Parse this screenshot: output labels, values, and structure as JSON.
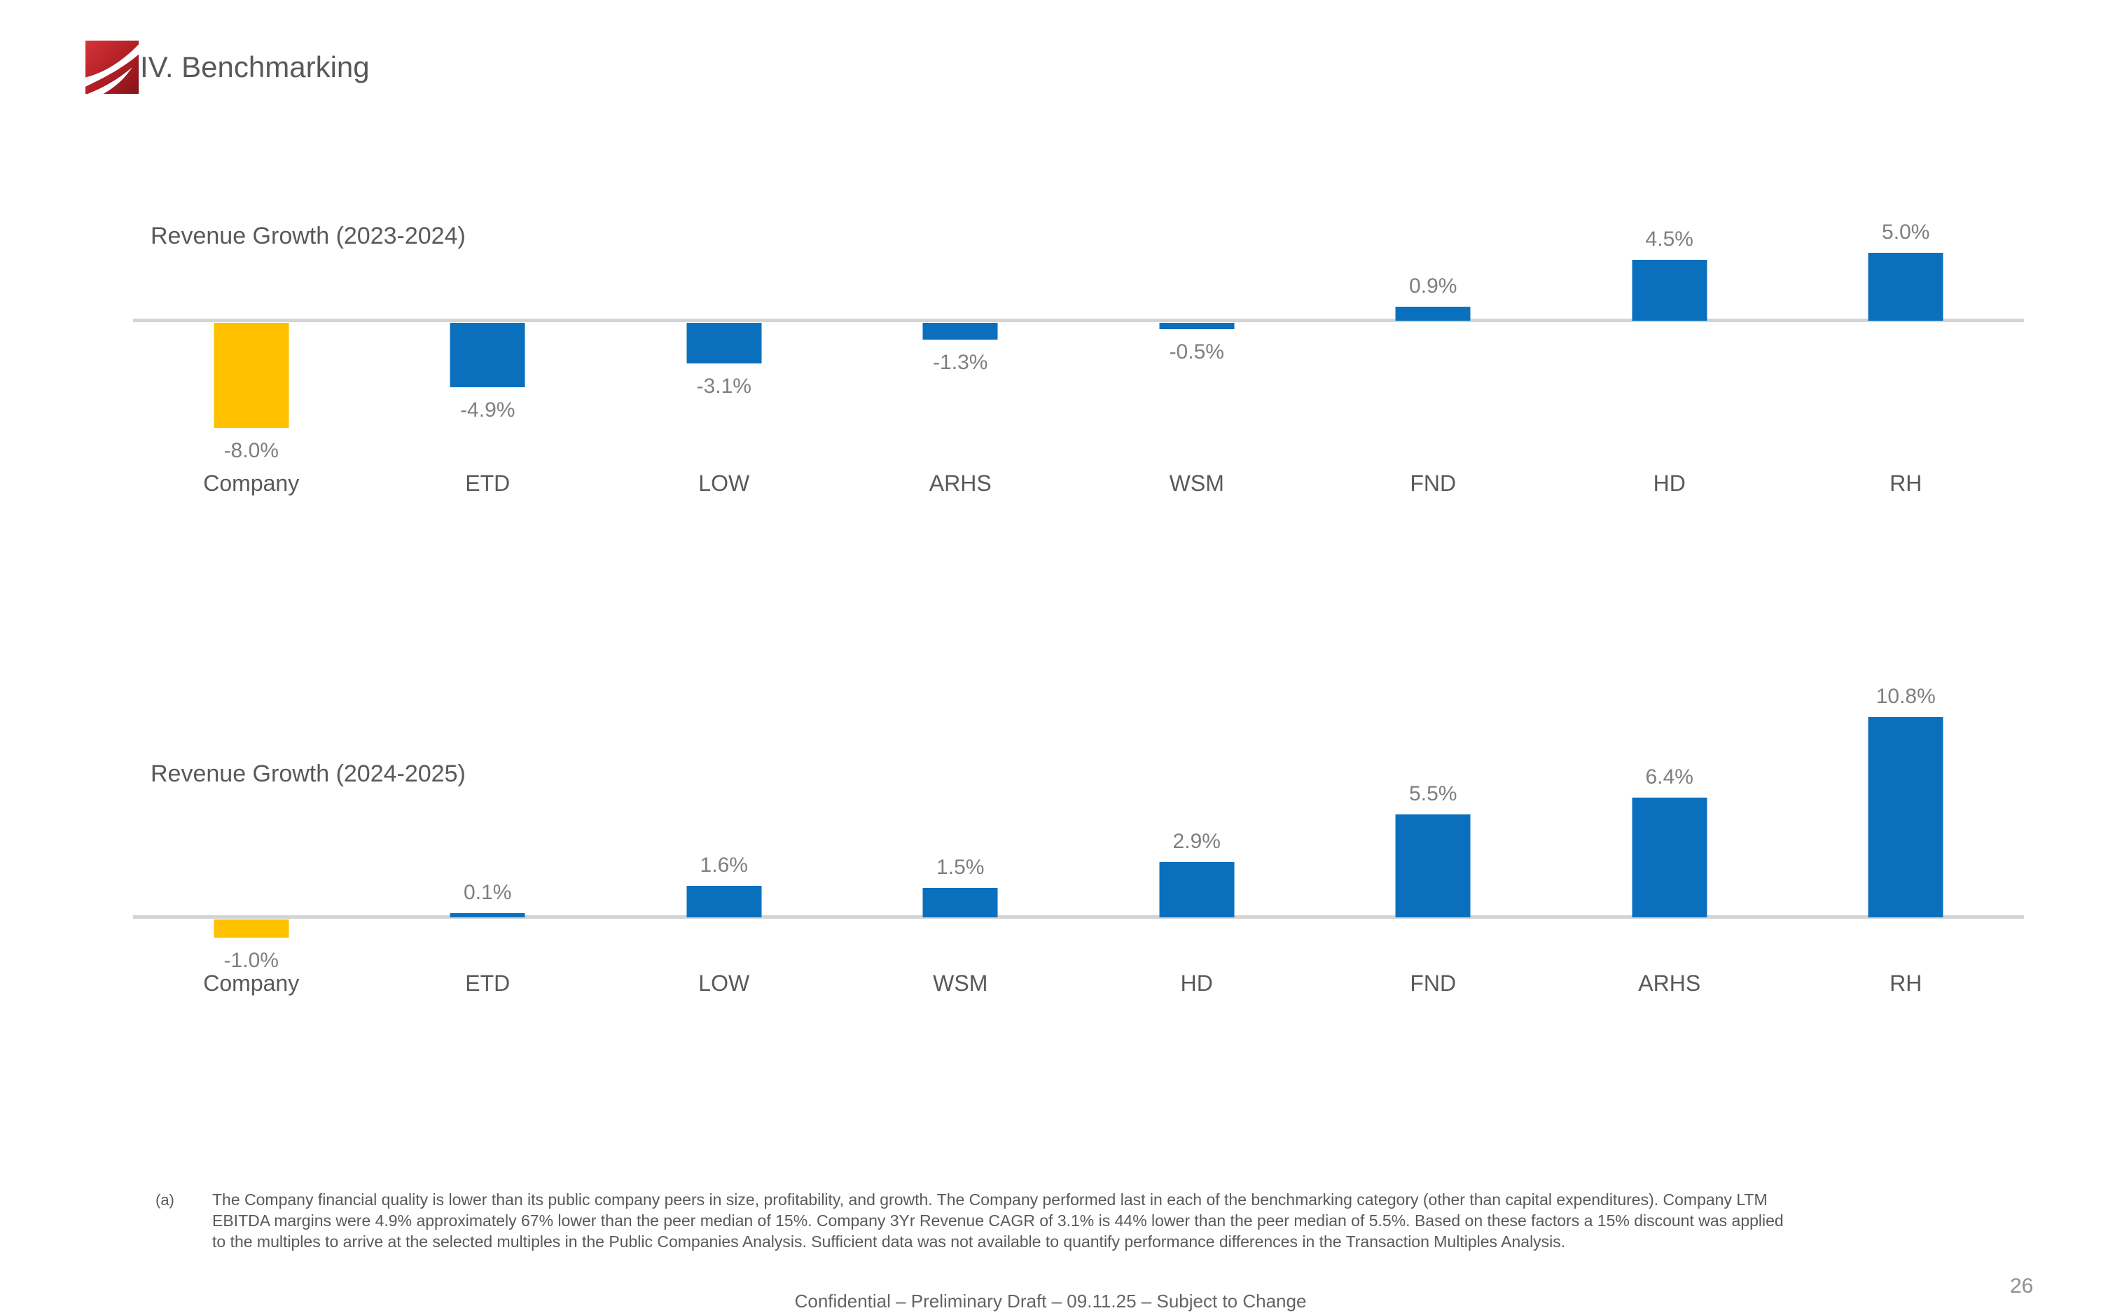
{
  "page": {
    "title": "IV. Benchmarking",
    "logo_icon": "red-swoosh-logo",
    "footnote_marker": "(a)",
    "footnote": "The Company financial quality is lower than its public company peers in size, profitability, and growth. The Company performed last in each of the benchmarking category (other than capital expenditures). Company LTM\nEBITDA margins were 4.9% approximately 67% lower than the peer median of 15%. Company 3Yr Revenue CAGR of 3.1% is 44% lower than the peer median of 5.5%. Based on these factors a 15% discount was applied\nto the multiples to arrive at the selected multiples in the Public Companies Analysis. Sufficient data was not available to quantify performance differences in the Transaction Multiples Analysis.",
    "footer": "Confidential – Preliminary Draft – 09.11.25 –  Subject to Change",
    "page_number": "26"
  },
  "colors": {
    "bar_default": "#0A70BE",
    "bar_highlight": "#FFC000",
    "axis": "#D4D4D4",
    "text_primary": "#595959",
    "text_secondary": "#7F7F7F"
  },
  "chart_data": [
    {
      "type": "bar",
      "title": "Revenue Growth (2023-2024)",
      "categories": [
        "Company",
        "ETD",
        "LOW",
        "ARHS",
        "WSM",
        "FND",
        "HD",
        "RH"
      ],
      "values": [
        -8.0,
        -4.9,
        -3.1,
        -1.3,
        -0.5,
        0.9,
        4.5,
        5.0
      ],
      "labels": [
        "-8.0%",
        "-4.9%",
        "-3.1%",
        "-1.3%",
        "-0.5%",
        "0.9%",
        "4.5%",
        "5.0%"
      ],
      "highlight_index": 0,
      "unit": "%",
      "ylim": [
        -9,
        6
      ],
      "grid": false,
      "legend": "none"
    },
    {
      "type": "bar",
      "title": "Revenue Growth (2024-2025)",
      "categories": [
        "Company",
        "ETD",
        "LOW",
        "WSM",
        "HD",
        "FND",
        "ARHS",
        "RH"
      ],
      "values": [
        -1.0,
        0.1,
        1.6,
        1.5,
        2.9,
        5.5,
        6.4,
        10.8
      ],
      "labels": [
        "-1.0%",
        "0.1%",
        "1.6%",
        "1.5%",
        "2.9%",
        "5.5%",
        "6.4%",
        "10.8%"
      ],
      "highlight_index": 0,
      "unit": "%",
      "ylim": [
        -2,
        12
      ],
      "grid": false,
      "legend": "none"
    }
  ]
}
